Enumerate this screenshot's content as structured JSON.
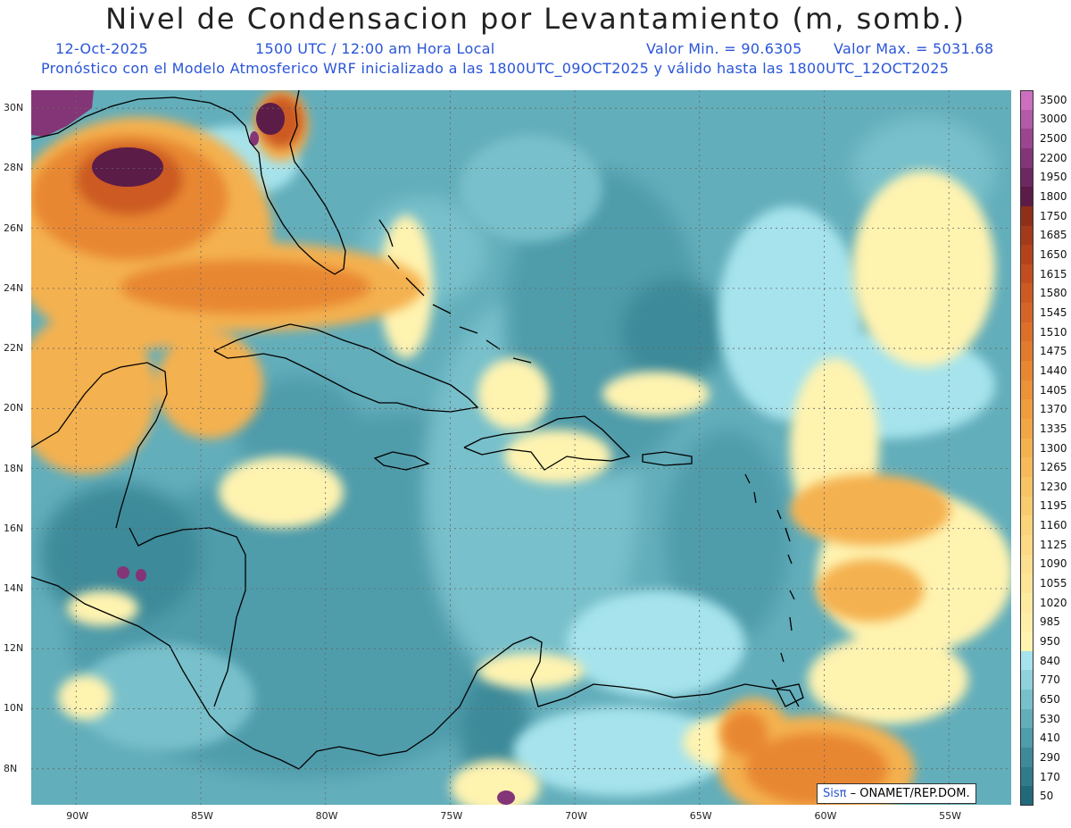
{
  "header": {
    "title": "Nivel de Condensacion por Levantamiento (m, somb.)",
    "date": "12-Oct-2025",
    "time": "1500 UTC / 12:00 am Hora Local",
    "min_label": "Valor Min. = 90.6305",
    "max_label": "Valor Max. = 5031.68",
    "description": "Pronóstico con el Modelo Atmosferico WRF inicializado a las 1800UTC_09OCT2025 y válido hasta las  1800UTC_12OCT2025"
  },
  "map": {
    "lon_labels": [
      "90W",
      "85W",
      "80W",
      "75W",
      "70W",
      "65W",
      "60W",
      "55W"
    ],
    "lat_labels": [
      "30N",
      "28N",
      "26N",
      "24N",
      "22N",
      "20N",
      "18N",
      "16N",
      "14N",
      "12N",
      "10N",
      "8N"
    ],
    "lon_values": [
      -90,
      -85,
      -80,
      -75,
      -70,
      -65,
      -60,
      -55
    ],
    "lat_values": [
      30,
      28,
      26,
      24,
      22,
      20,
      18,
      16,
      14,
      12,
      10,
      8
    ],
    "extent": {
      "lon_min": -91.8,
      "lon_max": -52.5,
      "lat_min": 6.8,
      "lat_max": 30.6
    }
  },
  "colorbar": {
    "labels": [
      "3500",
      "3000",
      "2500",
      "2200",
      "1950",
      "1800",
      "1750",
      "1685",
      "1650",
      "1615",
      "1580",
      "1545",
      "1510",
      "1475",
      "1440",
      "1405",
      "1370",
      "1335",
      "1300",
      "1265",
      "1230",
      "1195",
      "1160",
      "1125",
      "1090",
      "1055",
      "1020",
      "985",
      "950",
      "840",
      "770",
      "650",
      "530",
      "410",
      "290",
      "170",
      "50"
    ],
    "colors": [
      "#cc6fbf",
      "#b35aa8",
      "#9a4590",
      "#843577",
      "#6d2862",
      "#5c1c48",
      "#8f2f1a",
      "#a33a1a",
      "#b4431c",
      "#c24e1f",
      "#cc5a22",
      "#d56526",
      "#dc7029",
      "#e27b2d",
      "#e88732",
      "#ec9238",
      "#ef9d3f",
      "#f1a747",
      "#f4b150",
      "#f6ba5a",
      "#f8c364",
      "#f9cb6f",
      "#fad37a",
      "#fbd985",
      "#fcdf8f",
      "#fde598",
      "#feeaa0",
      "#feefa8",
      "#fff3b0",
      "#a6e3ec",
      "#8fd2db",
      "#78c0cb",
      "#63aebb",
      "#4f9cab",
      "#3e8a9a",
      "#307a8a",
      "#226a7b"
    ]
  },
  "field_colors": {
    "c1": "#226a7b",
    "c2": "#3e8a9a",
    "c3": "#4f9cab",
    "c4": "#63aebb",
    "c5": "#78c0cb",
    "c6": "#a6e3ec",
    "y1": "#fff3b0",
    "y2": "#fbd985",
    "o1": "#f4b150",
    "o2": "#e88732",
    "o3": "#cc5a22",
    "r1": "#8f2f1a",
    "p1": "#5c1c48",
    "p2": "#843577"
  },
  "credit": {
    "logo": "Sisπ",
    "text": "– ONAMET/REP.DOM."
  }
}
